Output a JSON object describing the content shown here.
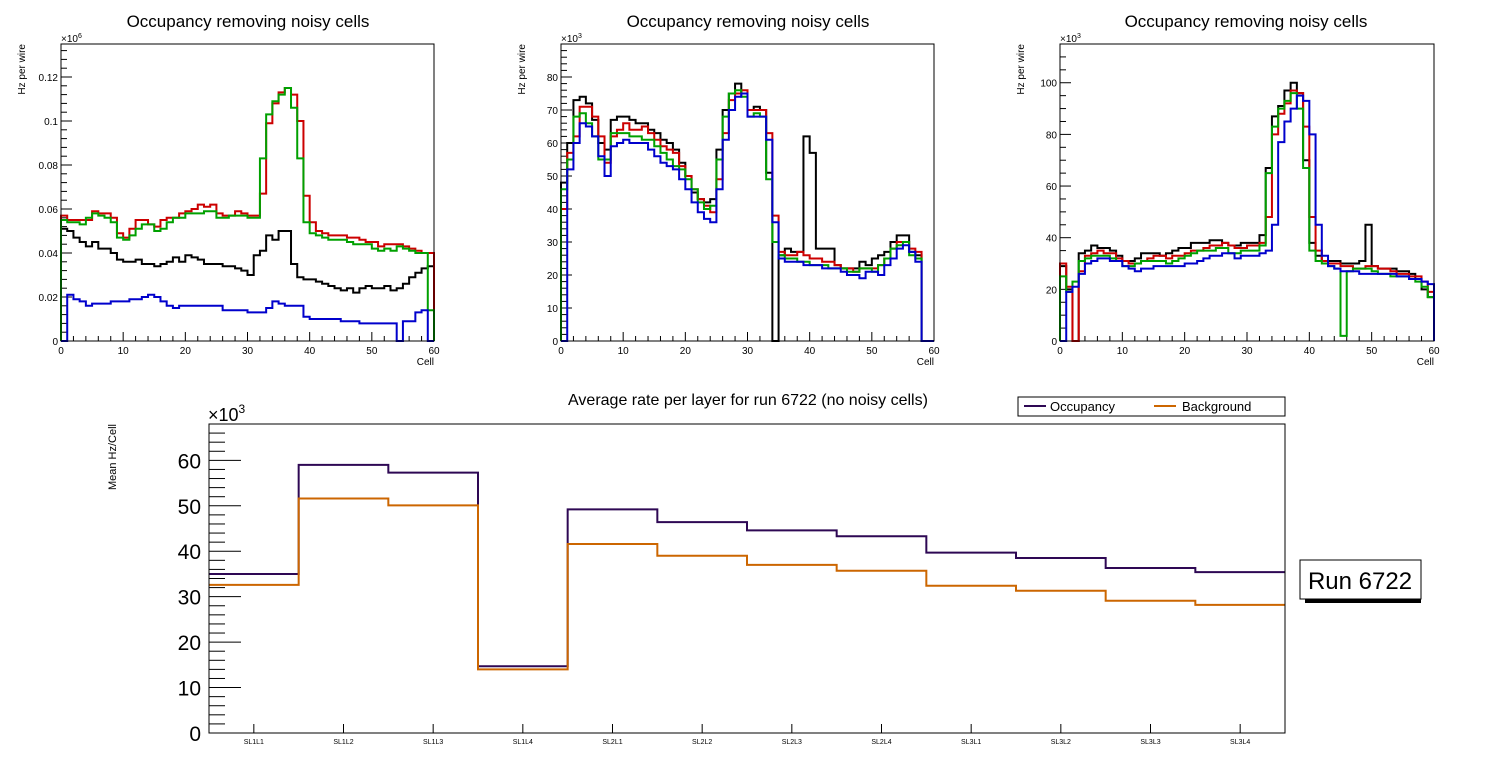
{
  "chart_data": [
    {
      "type": "line",
      "id": "occ1",
      "title": "Occupancy removing noisy cells",
      "xlabel": "Cell",
      "ylabel": "Hz per wire",
      "y_multiplier": "×10^6",
      "y_mult_base": "×10",
      "y_mult_exp": "6",
      "xlim": [
        0,
        60
      ],
      "ylim": [
        0,
        0.135
      ],
      "x_ticks": [
        0,
        10,
        20,
        30,
        40,
        50,
        60
      ],
      "x_tick_labels": [
        "0",
        "10",
        "20",
        "30",
        "40",
        "50",
        "60"
      ],
      "y_ticks": [
        0,
        0.02,
        0.04,
        0.06,
        0.08,
        0.1,
        0.12
      ],
      "y_tick_labels": [
        "0",
        "0.02",
        "0.04",
        "0.06",
        "0.08",
        "0.1",
        "0.12"
      ],
      "series": [
        {
          "name": "black",
          "color": "#000000",
          "values": [
            0.051,
            0.05,
            0.047,
            0.045,
            0.043,
            0.045,
            0.042,
            0.042,
            0.04,
            0.037,
            0.036,
            0.036,
            0.037,
            0.035,
            0.035,
            0.034,
            0.035,
            0.036,
            0.038,
            0.036,
            0.039,
            0.038,
            0.037,
            0.035,
            0.035,
            0.035,
            0.034,
            0.034,
            0.033,
            0.032,
            0.03,
            0.039,
            0.041,
            0.048,
            0.046,
            0.05,
            0.05,
            0.035,
            0.029,
            0.028,
            0.028,
            0.027,
            0.026,
            0.025,
            0.024,
            0.023,
            0.024,
            0.022,
            0.024,
            0.025,
            0.024,
            0.024,
            0.025,
            0.023,
            0.024,
            0.026,
            0.029,
            0.031,
            0.033,
            0.034
          ]
        },
        {
          "name": "red",
          "color": "#cc0000",
          "values": [
            0.057,
            0.055,
            0.055,
            0.055,
            0.055,
            0.059,
            0.058,
            0.058,
            0.056,
            0.049,
            0.047,
            0.051,
            0.055,
            0.055,
            0.053,
            0.052,
            0.055,
            0.056,
            0.056,
            0.058,
            0.059,
            0.06,
            0.062,
            0.061,
            0.062,
            0.058,
            0.057,
            0.057,
            0.059,
            0.058,
            0.057,
            0.057,
            0.067,
            0.099,
            0.108,
            0.113,
            0.115,
            0.112,
            0.1,
            0.066,
            0.054,
            0.05,
            0.049,
            0.048,
            0.048,
            0.048,
            0.047,
            0.047,
            0.046,
            0.045,
            0.045,
            0.043,
            0.044,
            0.044,
            0.044,
            0.043,
            0.042,
            0.041,
            0.04,
            0.04
          ]
        },
        {
          "name": "green",
          "color": "#00a000",
          "values": [
            0.055,
            0.054,
            0.054,
            0.053,
            0.056,
            0.058,
            0.057,
            0.056,
            0.054,
            0.047,
            0.046,
            0.048,
            0.051,
            0.053,
            0.053,
            0.05,
            0.051,
            0.054,
            0.056,
            0.056,
            0.058,
            0.058,
            0.058,
            0.059,
            0.059,
            0.056,
            0.056,
            0.057,
            0.057,
            0.057,
            0.056,
            0.056,
            0.083,
            0.103,
            0.109,
            0.112,
            0.115,
            0.106,
            0.083,
            0.054,
            0.049,
            0.048,
            0.047,
            0.046,
            0.046,
            0.046,
            0.045,
            0.044,
            0.044,
            0.044,
            0.042,
            0.041,
            0.042,
            0.041,
            0.043,
            0.042,
            0.041,
            0.04,
            0.04,
            0.014
          ]
        },
        {
          "name": "blue",
          "color": "#0000cc",
          "values": [
            0.0,
            0.021,
            0.019,
            0.018,
            0.016,
            0.017,
            0.017,
            0.017,
            0.018,
            0.018,
            0.018,
            0.019,
            0.019,
            0.02,
            0.021,
            0.02,
            0.018,
            0.016,
            0.015,
            0.016,
            0.016,
            0.016,
            0.016,
            0.016,
            0.016,
            0.016,
            0.014,
            0.014,
            0.014,
            0.014,
            0.013,
            0.013,
            0.013,
            0.015,
            0.018,
            0.017,
            0.016,
            0.016,
            0.016,
            0.011,
            0.01,
            0.01,
            0.01,
            0.01,
            0.01,
            0.009,
            0.009,
            0.009,
            0.008,
            0.008,
            0.008,
            0.008,
            0.008,
            0.008,
            0.0,
            0.009,
            0.009,
            0.013,
            0.014,
            0.0
          ]
        }
      ]
    },
    {
      "type": "line",
      "id": "occ2",
      "title": "Occupancy removing noisy cells",
      "xlabel": "Cell",
      "ylabel": "Hz per wire",
      "y_multiplier": "×10^3",
      "y_mult_base": "×10",
      "y_mult_exp": "3",
      "xlim": [
        0,
        60
      ],
      "ylim": [
        0,
        90
      ],
      "x_ticks": [
        0,
        10,
        20,
        30,
        40,
        50,
        60
      ],
      "x_tick_labels": [
        "0",
        "10",
        "20",
        "30",
        "40",
        "50",
        "60"
      ],
      "y_ticks": [
        0,
        10,
        20,
        30,
        40,
        50,
        60,
        70,
        80
      ],
      "y_tick_labels": [
        "0",
        "10",
        "20",
        "30",
        "40",
        "50",
        "60",
        "70",
        "80"
      ],
      "series": [
        {
          "name": "black",
          "color": "#000000",
          "values": [
            48,
            60,
            73,
            74,
            72,
            67,
            60,
            58,
            67,
            68,
            68,
            67,
            66,
            66,
            64,
            63,
            61,
            60,
            58,
            54,
            50,
            45,
            43,
            42,
            43,
            58,
            70,
            75,
            78,
            75,
            70,
            71,
            70,
            51,
            0,
            26,
            28,
            27,
            27,
            62,
            57,
            28,
            28,
            28,
            23,
            22,
            22,
            22,
            24,
            23,
            25,
            26,
            27,
            30,
            32,
            32,
            27,
            26,
            0,
            0
          ]
        },
        {
          "name": "red",
          "color": "#cc0000",
          "values": [
            40,
            57,
            62,
            71,
            71,
            68,
            62,
            54,
            62,
            64,
            66,
            64,
            64,
            65,
            63,
            61,
            59,
            58,
            57,
            53,
            50,
            46,
            43,
            41,
            39,
            49,
            63,
            73,
            75,
            76,
            70,
            70,
            70,
            63,
            38,
            27,
            26,
            26,
            27,
            26,
            25,
            25,
            24,
            24,
            23,
            22,
            22,
            21,
            22,
            22,
            22,
            23,
            25,
            28,
            30,
            30,
            28,
            27,
            0,
            0
          ]
        },
        {
          "name": "green",
          "color": "#00a000",
          "values": [
            46,
            55,
            68,
            69,
            66,
            62,
            55,
            55,
            63,
            63,
            63,
            62,
            62,
            61,
            61,
            59,
            57,
            55,
            53,
            52,
            49,
            46,
            42,
            40,
            41,
            55,
            68,
            75,
            76,
            74,
            68,
            69,
            68,
            49,
            30,
            26,
            25,
            25,
            24,
            24,
            23,
            23,
            23,
            22,
            22,
            22,
            21,
            21,
            22,
            22,
            21,
            23,
            25,
            28,
            29,
            30,
            26,
            25,
            0,
            0
          ]
        },
        {
          "name": "blue",
          "color": "#0000cc",
          "values": [
            0,
            52,
            60,
            66,
            65,
            62,
            56,
            50,
            59,
            60,
            61,
            60,
            60,
            60,
            58,
            56,
            54,
            53,
            52,
            49,
            46,
            42,
            39,
            37,
            36,
            46,
            61,
            70,
            74,
            75,
            68,
            68,
            68,
            61,
            36,
            25,
            24,
            24,
            24,
            23,
            23,
            23,
            22,
            22,
            22,
            21,
            20,
            20,
            19,
            21,
            21,
            20,
            23,
            25,
            28,
            29,
            27,
            24,
            0,
            0
          ]
        }
      ]
    },
    {
      "type": "line",
      "id": "occ3",
      "title": "Occupancy removing noisy cells",
      "xlabel": "Cell",
      "ylabel": "Hz per wire",
      "y_multiplier": "×10^3",
      "y_mult_base": "×10",
      "y_mult_exp": "3",
      "xlim": [
        0,
        60
      ],
      "ylim": [
        0,
        115
      ],
      "x_ticks": [
        0,
        10,
        20,
        30,
        40,
        50,
        60
      ],
      "x_tick_labels": [
        "0",
        "10",
        "20",
        "30",
        "40",
        "50",
        "60"
      ],
      "y_ticks": [
        0,
        20,
        40,
        60,
        80,
        100
      ],
      "y_tick_labels": [
        "0",
        "20",
        "40",
        "60",
        "80",
        "100"
      ],
      "series": [
        {
          "name": "black",
          "color": "#000000",
          "values": [
            29,
            20,
            0,
            34,
            35,
            37,
            36,
            36,
            35,
            33,
            31,
            31,
            32,
            34,
            34,
            34,
            33,
            34,
            35,
            36,
            36,
            38,
            38,
            38,
            39,
            39,
            38,
            37,
            37,
            38,
            38,
            38,
            41,
            67,
            87,
            91,
            97,
            100,
            96,
            70,
            38,
            33,
            31,
            31,
            31,
            30,
            30,
            30,
            31,
            45,
            29,
            28,
            28,
            28,
            27,
            27,
            26,
            24,
            20,
            17
          ]
        },
        {
          "name": "red",
          "color": "#cc0000",
          "values": [
            30,
            21,
            0,
            27,
            33,
            34,
            35,
            34,
            34,
            32,
            31,
            30,
            30,
            31,
            32,
            33,
            33,
            32,
            33,
            33,
            34,
            35,
            35,
            36,
            37,
            37,
            38,
            37,
            36,
            36,
            37,
            37,
            38,
            48,
            80,
            88,
            92,
            97,
            96,
            83,
            48,
            35,
            31,
            30,
            30,
            29,
            29,
            28,
            28,
            29,
            29,
            28,
            28,
            27,
            26,
            26,
            25,
            25,
            23,
            19
          ]
        },
        {
          "name": "green",
          "color": "#00a000",
          "values": [
            25,
            19,
            23,
            31,
            32,
            33,
            33,
            33,
            32,
            31,
            29,
            29,
            30,
            31,
            31,
            31,
            31,
            30,
            31,
            32,
            33,
            34,
            35,
            35,
            35,
            36,
            36,
            34,
            34,
            35,
            35,
            35,
            37,
            65,
            83,
            90,
            93,
            96,
            90,
            67,
            35,
            31,
            30,
            29,
            28,
            2,
            27,
            28,
            28,
            28,
            27,
            26,
            26,
            25,
            25,
            25,
            24,
            23,
            21,
            17
          ]
        },
        {
          "name": "blue",
          "color": "#0000cc",
          "values": [
            0,
            19,
            21,
            26,
            30,
            31,
            32,
            32,
            31,
            31,
            29,
            28,
            27,
            28,
            28,
            29,
            29,
            29,
            29,
            29,
            30,
            30,
            31,
            32,
            33,
            33,
            34,
            34,
            32,
            33,
            33,
            33,
            34,
            35,
            45,
            77,
            85,
            90,
            95,
            93,
            80,
            45,
            33,
            29,
            28,
            27,
            27,
            27,
            26,
            26,
            26,
            26,
            26,
            26,
            25,
            25,
            24,
            24,
            23,
            22
          ]
        }
      ]
    },
    {
      "type": "line",
      "id": "avg",
      "title": "Average rate per layer for run 6722 (no noisy cells)",
      "xlabel": "",
      "ylabel": "Mean Hz/Cell",
      "y_multiplier": "×10^3",
      "y_mult_base": "×10",
      "y_mult_exp": "3",
      "ylim": [
        0,
        68
      ],
      "categories": [
        "SL1L1",
        "SL1L2",
        "SL1L3",
        "SL1L4",
        "SL2L1",
        "SL2L2",
        "SL2L3",
        "SL2L4",
        "SL3L1",
        "SL3L2",
        "SL3L3",
        "SL3L4"
      ],
      "y_ticks": [
        0,
        10,
        20,
        30,
        40,
        50,
        60
      ],
      "y_tick_labels": [
        "0",
        "10",
        "20",
        "30",
        "40",
        "50",
        "60"
      ],
      "legend_position": "top-right",
      "series": [
        {
          "name": "Occupancy",
          "color": "#2e0854",
          "values": [
            35.0,
            59.0,
            57.3,
            14.7,
            49.2,
            46.4,
            44.6,
            43.3,
            39.7,
            38.5,
            36.3,
            35.4
          ]
        },
        {
          "name": "Background",
          "color": "#cc6600",
          "values": [
            32.6,
            51.6,
            50.1,
            14.0,
            41.6,
            39.0,
            37.0,
            35.7,
            32.4,
            31.3,
            29.1,
            28.2
          ]
        }
      ]
    }
  ],
  "annotation": {
    "run_label": "Run 6722"
  }
}
